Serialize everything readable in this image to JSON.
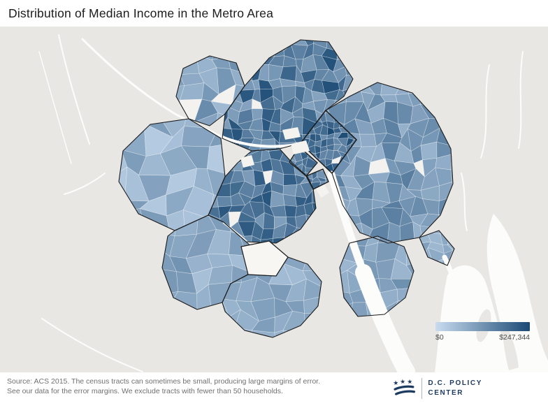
{
  "title": "Distribution of Median Income in the Metro Area",
  "legend": {
    "min_label": "$0",
    "max_label": "$247,344",
    "color_min": "#c9dcf0",
    "color_max": "#1b4a74"
  },
  "map": {
    "background_color": "#e8e7e4",
    "water_color": "#fcfcfb"
  },
  "footer": {
    "source_line1": "Source: ACS 2015. The census tracts can sometimes be small, producing large margins of error.",
    "source_line2": "See our data for the error margins. We exclude tracts with fewer than 50 households.",
    "logo_color": "#1d3a5f",
    "logo_line1": "D.C. POLICY",
    "logo_line2": "CENTER"
  },
  "chart_data": {
    "type": "heatmap",
    "subtype": "choropleth-map",
    "title": "Distribution of Median Income in the Metro Area",
    "measure": "Median income by census tract",
    "value_range": [
      0,
      247344
    ],
    "range_labels": [
      "$0",
      "$247,344"
    ],
    "palette": [
      "#c9dcf0",
      "#1b4a74"
    ],
    "legend_position": "bottom-right"
  }
}
